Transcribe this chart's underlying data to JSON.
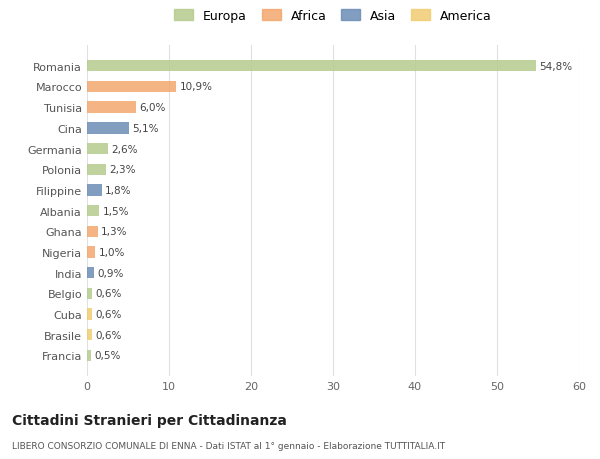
{
  "countries": [
    "Romania",
    "Marocco",
    "Tunisia",
    "Cina",
    "Germania",
    "Polonia",
    "Filippine",
    "Albania",
    "Ghana",
    "Nigeria",
    "India",
    "Belgio",
    "Cuba",
    "Brasile",
    "Francia"
  ],
  "values": [
    54.8,
    10.9,
    6.0,
    5.1,
    2.6,
    2.3,
    1.8,
    1.5,
    1.3,
    1.0,
    0.9,
    0.6,
    0.6,
    0.6,
    0.5
  ],
  "labels": [
    "54,8%",
    "10,9%",
    "6,0%",
    "5,1%",
    "2,6%",
    "2,3%",
    "1,8%",
    "1,5%",
    "1,3%",
    "1,0%",
    "0,9%",
    "0,6%",
    "0,6%",
    "0,6%",
    "0,5%"
  ],
  "continents": [
    "Europa",
    "Africa",
    "Africa",
    "Asia",
    "Europa",
    "Europa",
    "Asia",
    "Europa",
    "Africa",
    "Africa",
    "Asia",
    "Europa",
    "America",
    "America",
    "Europa"
  ],
  "colors": {
    "Europa": "#b5cc8e",
    "Africa": "#f4a76f",
    "Asia": "#6b8db5",
    "America": "#f0cc72"
  },
  "xlim": [
    0,
    60
  ],
  "xticks": [
    0,
    10,
    20,
    30,
    40,
    50,
    60
  ],
  "title": "Cittadini Stranieri per Cittadinanza",
  "subtitle": "LIBERO CONSORZIO COMUNALE DI ENNA - Dati ISTAT al 1° gennaio - Elaborazione TUTTITALIA.IT",
  "background_color": "#ffffff",
  "grid_color": "#e0e0e0",
  "bar_height": 0.55,
  "legend_order": [
    "Europa",
    "Africa",
    "Asia",
    "America"
  ]
}
